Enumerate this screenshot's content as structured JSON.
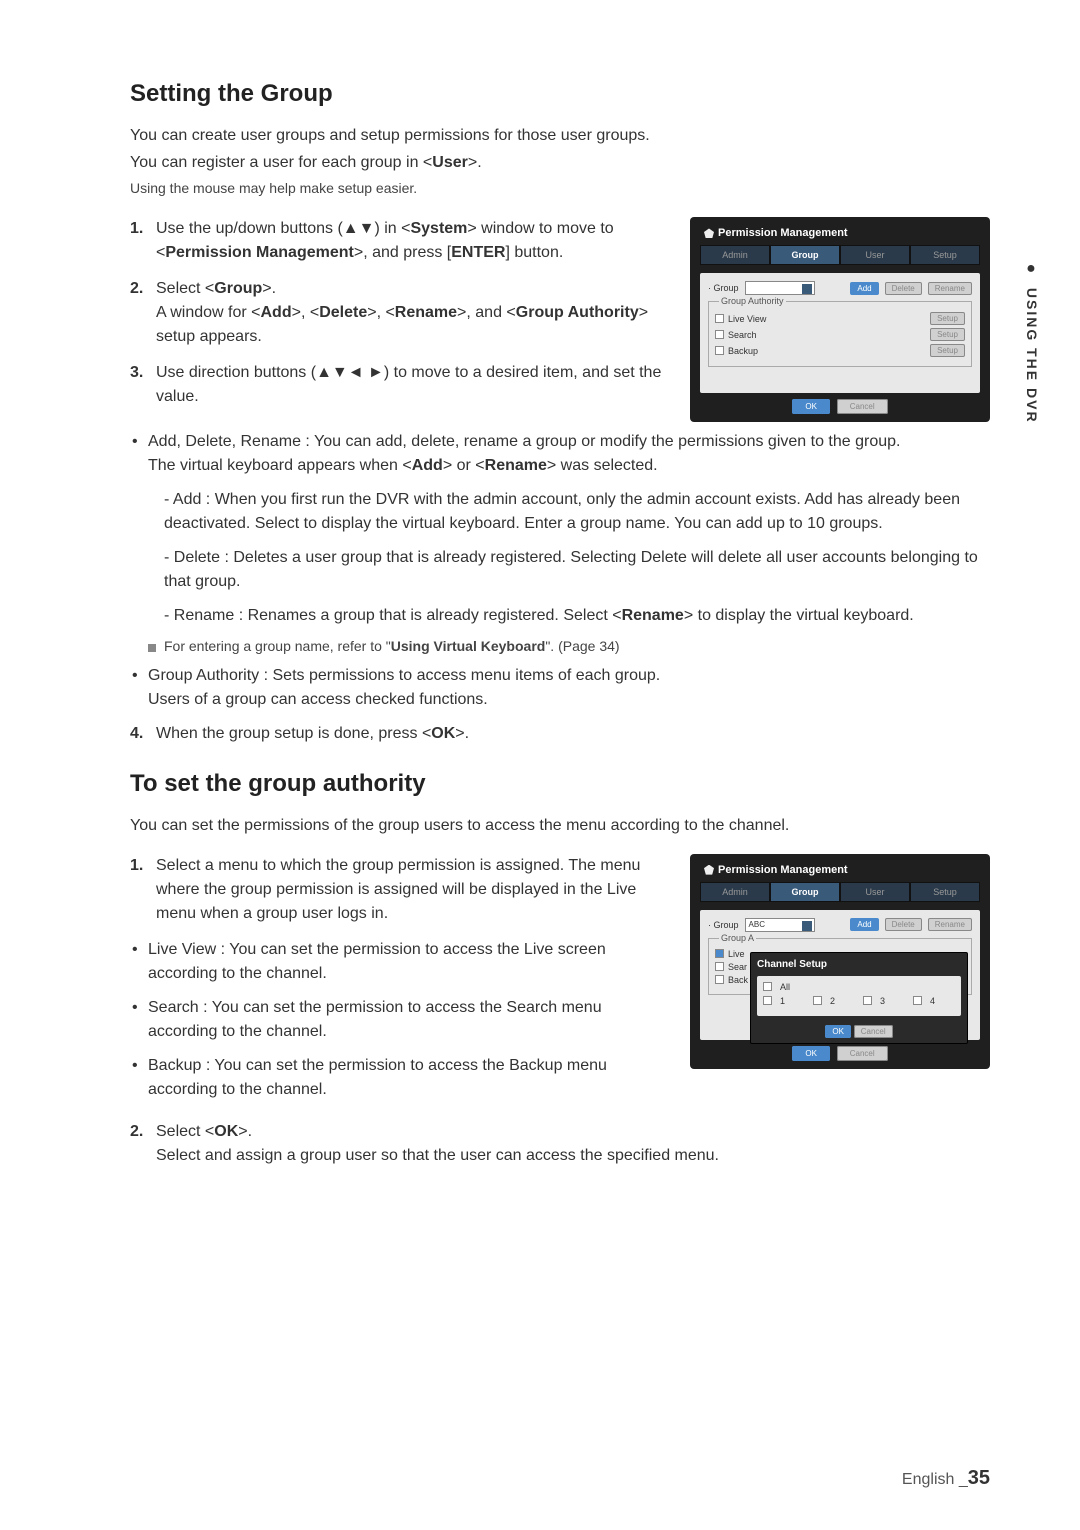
{
  "side_tab": "USING THE DVR",
  "section1": {
    "title": "Setting the Group",
    "intro1": "You can create user groups and setup permissions for those user groups.",
    "intro2": "You can register a user for each group in <User>.",
    "intro3": "Using the mouse may help make setup easier.",
    "step1": "Use the up/down buttons (▲▼) in <System> window to move to <Permission Management>, and press [ENTER] button.",
    "step2": "Select <Group>.\nA window for <Add>, <Delete>, <Rename>, and <Group Authority> setup appears.",
    "step3": "Use direction buttons (▲▼◄ ►) to move to a desired item, and set the value.",
    "bullet1": "Add, Delete, Rename : You can add, delete, rename a group or modify the permissions given to the group.\nThe virtual keyboard appears when <Add> or <Rename> was selected.",
    "sub1": "- Add : When you first run the DVR with the admin account, only the admin account exists. Add has already been deactivated.  Select to display the virtual keyboard.  Enter a group name.  You can add up to 10 groups.",
    "sub2": "- Delete : Deletes a user group that is already registered. Selecting Delete will delete all user accounts belonging to that group.",
    "sub3": "- Rename : Renames a group that is already registered. Select <Rename> to display the virtual keyboard.",
    "note": "For entering a group name, refer to \"Using Virtual Keyboard\". (Page 34)",
    "bullet2": "Group Authority : Sets permissions to access menu items of each group.\nUsers of a group can access checked functions.",
    "step4": "When the group setup is done, press <OK>."
  },
  "section2": {
    "title": "To set the group authority",
    "intro": "You can set the permissions of the group users to access the menu according to the channel.",
    "step1": "Select a menu to which the group permission is assigned. The menu where the group permission is assigned will be displayed in the Live menu when a group user logs in.",
    "bullet_lv": "Live View : You can set the permission to access the Live screen according to the channel.",
    "bullet_sr": "Search : You can set the permission to access the Search menu according to the channel.",
    "bullet_bk": "Backup : You can set the permission to access the Backup menu according to the channel.",
    "step2": "Select <OK>.\nSelect and assign a group user so that the user can access the specified menu."
  },
  "dialog1": {
    "title": "Permission Management",
    "tabs": {
      "admin": "Admin",
      "group": "Group",
      "user": "User",
      "setup": "Setup"
    },
    "group_label": "· Group",
    "add": "Add",
    "delete": "Delete",
    "rename": "Rename",
    "authority_label": "Group Authority",
    "live_view": "Live View",
    "search": "Search",
    "backup": "Backup",
    "setup_btn": "Setup",
    "ok": "OK",
    "cancel": "Cancel"
  },
  "dialog2": {
    "title": "Permission Management",
    "tabs": {
      "admin": "Admin",
      "group": "Group",
      "user": "User",
      "setup": "Setup"
    },
    "group_label": "· Group",
    "group_value": "ABC",
    "add": "Add",
    "delete": "Delete",
    "rename": "Rename",
    "authority_label": "Group A",
    "live": "Live",
    "sear": "Sear",
    "back": "Back",
    "overlay_title": "Channel Setup",
    "all": "All",
    "ch1": "1",
    "ch2": "2",
    "ch3": "3",
    "ch4": "4",
    "ok": "OK",
    "cancel": "Cancel"
  },
  "footer": {
    "lang": "English _",
    "page": "35"
  }
}
